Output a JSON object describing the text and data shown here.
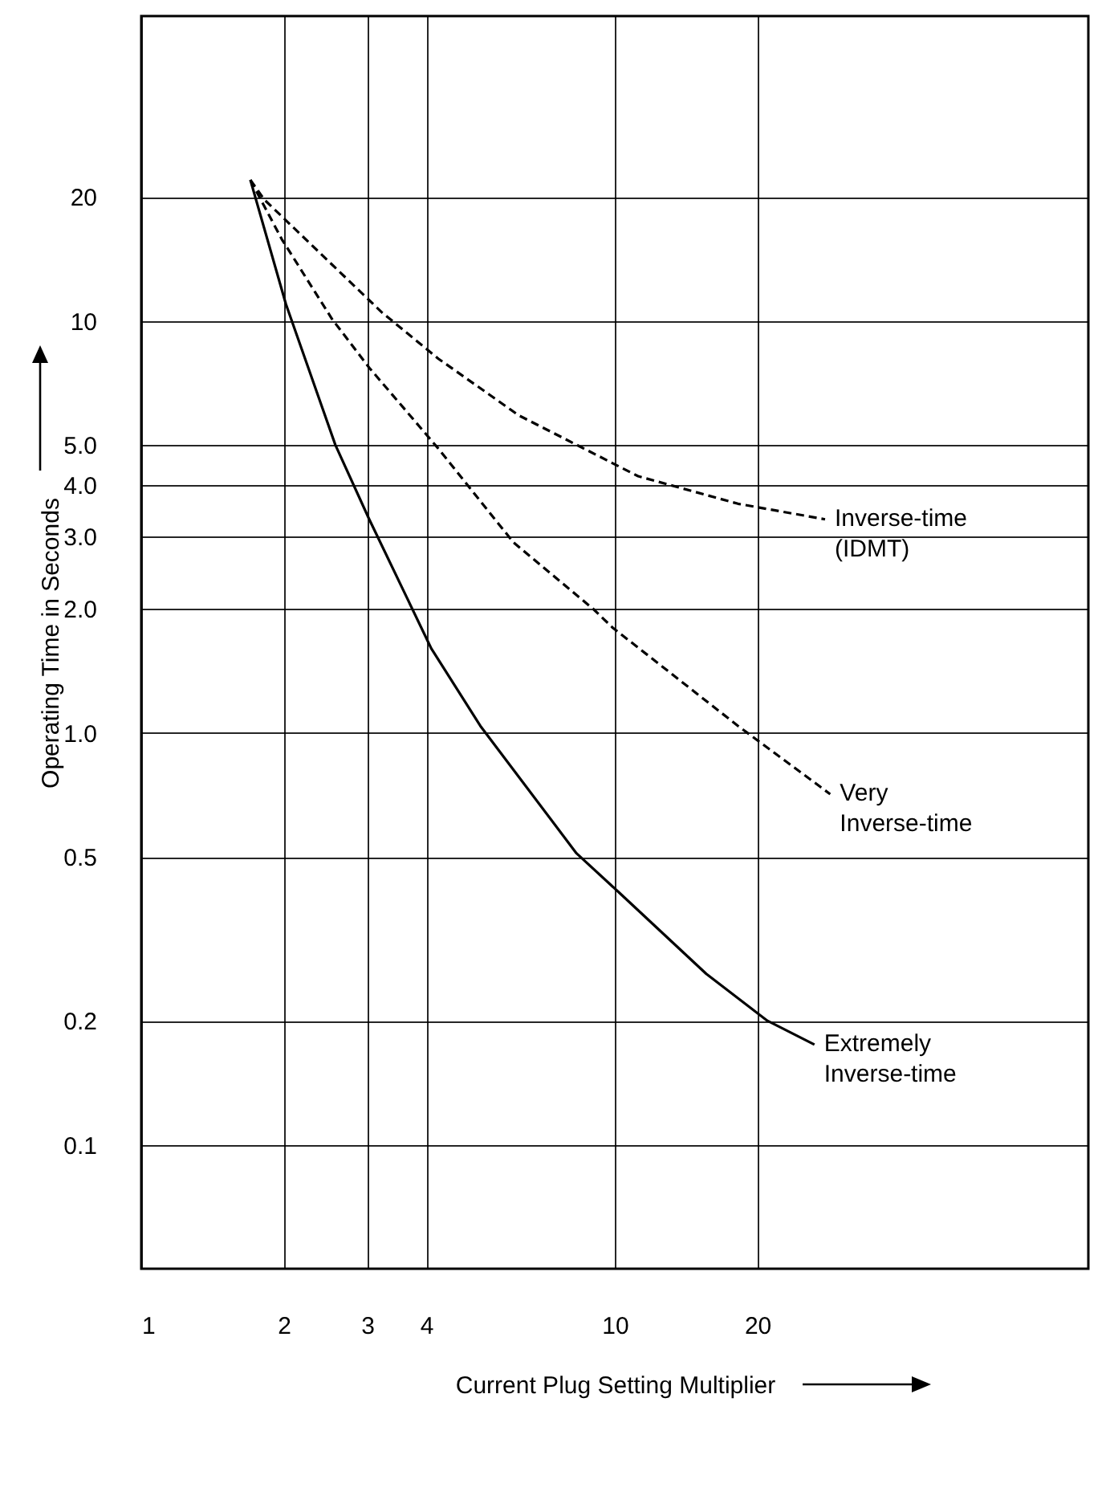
{
  "chart_data": {
    "type": "line",
    "xlabel": "Current Plug Setting Multiplier",
    "ylabel": "Operating Time in Seconds",
    "log": "xy",
    "grid": true,
    "xlim": [
      1,
      100
    ],
    "xticks": [
      1,
      2,
      3,
      4,
      10,
      20
    ],
    "ylim": [
      0.05,
      55
    ],
    "yticks": [
      {
        "value": 0.1,
        "label": "0.1"
      },
      {
        "value": 0.2,
        "label": "0.2"
      },
      {
        "value": 0.5,
        "label": "0.5"
      },
      {
        "value": 1,
        "label": "1.0"
      },
      {
        "value": 2,
        "label": "2.0"
      },
      {
        "value": 3,
        "label": "3.0"
      },
      {
        "value": 4,
        "label": "4.0"
      },
      {
        "value": 5,
        "label": "5.0"
      },
      10,
      20
    ],
    "series": [
      {
        "name": "Inverse-time (IDMT)",
        "color": "#000000",
        "line_style": "dashed",
        "x": [
          1.7,
          1.82,
          3.22,
          4.24,
          6.27,
          11.2,
          18.2,
          27.8
        ],
        "values": [
          22,
          19.7,
          10.5,
          8.1,
          5.9,
          4.2,
          3.6,
          3.3
        ]
      },
      {
        "name": "Very Inverse-time",
        "color": "#000000",
        "line_style": "dashed",
        "x": [
          1.7,
          1.98,
          2.53,
          3.03,
          4.24,
          6.11,
          9.0,
          9.9,
          18.2,
          28.5
        ],
        "values": [
          22,
          15.8,
          10.1,
          7.7,
          4.9,
          2.9,
          2.0,
          1.8,
          1.04,
          0.71
        ]
      },
      {
        "name": "Extremely Inverse-time",
        "color": "#000000",
        "line_style": "solid",
        "x": [
          1.7,
          2.02,
          2.57,
          3.03,
          4.1,
          5.2,
          8.3,
          10.2,
          15.6,
          21.0,
          26.4
        ],
        "values": [
          22,
          11.0,
          5.0,
          3.3,
          1.6,
          1.04,
          0.51,
          0.41,
          0.26,
          0.2,
          0.175
        ]
      }
    ]
  }
}
